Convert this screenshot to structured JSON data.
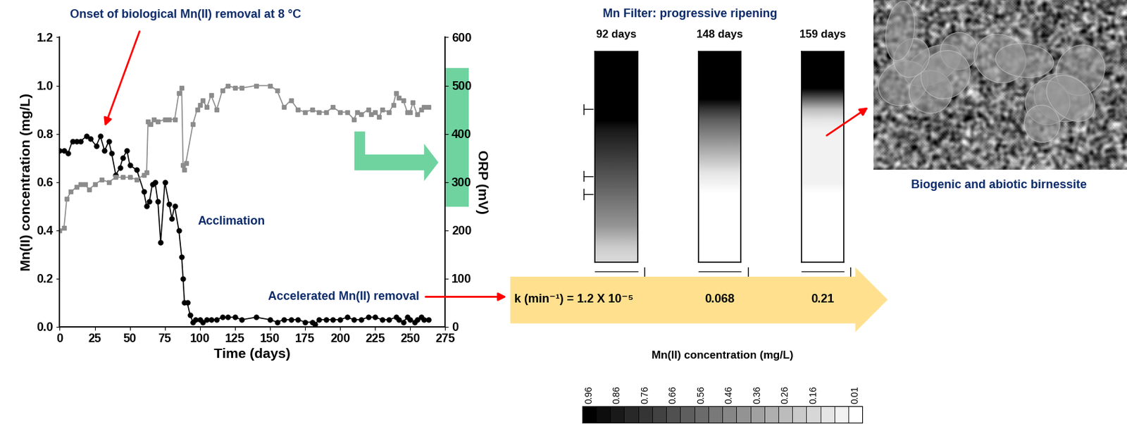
{
  "chart_data": {
    "type": "line",
    "x_label": "Time (days)",
    "y_label": "Mn(II) concentration (mg/L)",
    "y2_label": "ORP (mV)",
    "xlim": [
      0,
      275
    ],
    "xticks": [
      0,
      25,
      50,
      75,
      100,
      125,
      150,
      175,
      200,
      225,
      250,
      275
    ],
    "ylim": [
      0.0,
      1.2
    ],
    "yticks": [
      0.0,
      0.2,
      0.4,
      0.6,
      0.8,
      1.0,
      1.2
    ],
    "y2lim": [
      0,
      600
    ],
    "y2ticks": [
      0,
      100,
      200,
      300,
      400,
      500,
      600
    ],
    "series": [
      {
        "color": "#000000",
        "marker": "o",
        "x": [
          0,
          3,
          6,
          9,
          12,
          15,
          19,
          22,
          26,
          29,
          32,
          35,
          37,
          40,
          43,
          45,
          48,
          50,
          55,
          60,
          62,
          64,
          66,
          68,
          70,
          72,
          75,
          78,
          80,
          82,
          85,
          87,
          88,
          89,
          91,
          93,
          95,
          97,
          100,
          102,
          105,
          108,
          112,
          116,
          120,
          125,
          130,
          140,
          150,
          155,
          160,
          165,
          170,
          175,
          180,
          182,
          185,
          190,
          195,
          200,
          205,
          210,
          215,
          220,
          225,
          230,
          235,
          240,
          242,
          245,
          248,
          250,
          253,
          255,
          258,
          260,
          263
        ],
        "values": [
          0.73,
          0.73,
          0.72,
          0.77,
          0.77,
          0.77,
          0.79,
          0.78,
          0.75,
          0.79,
          0.73,
          0.77,
          0.72,
          0.63,
          0.66,
          0.7,
          0.73,
          0.67,
          0.65,
          0.56,
          0.5,
          0.52,
          0.59,
          0.6,
          0.52,
          0.35,
          0.6,
          0.51,
          0.45,
          0.5,
          0.4,
          0.29,
          0.2,
          0.1,
          0.1,
          0.05,
          0.02,
          0.03,
          0.03,
          0.02,
          0.03,
          0.03,
          0.03,
          0.04,
          0.04,
          0.04,
          0.03,
          0.04,
          0.03,
          0.02,
          0.03,
          0.03,
          0.03,
          0.02,
          0.02,
          0.01,
          0.03,
          0.03,
          0.03,
          0.03,
          0.04,
          0.03,
          0.03,
          0.04,
          0.04,
          0.03,
          0.03,
          0.04,
          0.03,
          0.02,
          0.04,
          0.03,
          0.02,
          0.03,
          0.04,
          0.03,
          0.03
        ]
      },
      {
        "color": "#8c8c8c",
        "marker": "s",
        "axis": "y2",
        "x": [
          0,
          3,
          5,
          8,
          12,
          15,
          18,
          21,
          25,
          30,
          35,
          40,
          45,
          50,
          55,
          60,
          62,
          63,
          65,
          67,
          70,
          75,
          78,
          82,
          85,
          87,
          88,
          89,
          90,
          95,
          98,
          100,
          102,
          105,
          108,
          112,
          116,
          120,
          125,
          130,
          140,
          150,
          155,
          160,
          165,
          170,
          175,
          180,
          185,
          190,
          195,
          200,
          205,
          210,
          212,
          215,
          220,
          222,
          225,
          228,
          230,
          235,
          238,
          240,
          242,
          245,
          248,
          250,
          252,
          255,
          258,
          260,
          263
        ],
        "values": [
          200,
          205,
          265,
          280,
          290,
          295,
          295,
          285,
          295,
          305,
          300,
          310,
          310,
          310,
          305,
          315,
          320,
          425,
          420,
          430,
          425,
          430,
          430,
          430,
          485,
          495,
          335,
          325,
          340,
          420,
          450,
          460,
          470,
          455,
          480,
          450,
          490,
          500,
          495,
          495,
          500,
          500,
          490,
          455,
          470,
          450,
          445,
          450,
          445,
          445,
          455,
          445,
          445,
          430,
          445,
          440,
          450,
          440,
          445,
          435,
          450,
          445,
          460,
          485,
          475,
          470,
          445,
          445,
          465,
          440,
          450,
          455,
          455
        ]
      }
    ],
    "annotations": [
      "Onset of biological Mn(II) removal at 8 °C",
      "Acclimation",
      "Accelerated Mn(II) removal"
    ]
  },
  "filter": {
    "title": "Mn Filter: progressive ripening",
    "columns": [
      {
        "label": "92 days",
        "profile": [
          0.96,
          0.96,
          0.96,
          0.96,
          0.96,
          0.96,
          0.96,
          0.86,
          0.81,
          0.76,
          0.71,
          0.66,
          0.61,
          0.56,
          0.51,
          0.46,
          0.41,
          0.31,
          0.21,
          0.16
        ]
      },
      {
        "label": "148 days",
        "profile": [
          0.96,
          0.96,
          0.96,
          0.96,
          0.96,
          0.76,
          0.61,
          0.51,
          0.41,
          0.31,
          0.21,
          0.11,
          0.06,
          0.01,
          0.01,
          0.01,
          0.01,
          0.01,
          0.01,
          0.01
        ]
      },
      {
        "label": "159 days",
        "profile": [
          0.96,
          0.96,
          0.96,
          0.96,
          0.61,
          0.26,
          0.11,
          0.06,
          0.06,
          0.06,
          0.06,
          0.06,
          0.06,
          0.01,
          0.01,
          0.01,
          0.01,
          0.01,
          0.01,
          0.01
        ]
      }
    ],
    "rate_label": "k (min⁻¹) =",
    "rates": [
      {
        "value": 1.2e-05,
        "label": "1.2 X 10⁻⁵"
      },
      0.068,
      0.21
    ],
    "colorbar": {
      "title": "Mn(II) concentration (mg/L)",
      "levels": [
        0.96,
        0.91,
        0.86,
        0.81,
        0.76,
        0.71,
        0.66,
        0.61,
        0.56,
        0.51,
        0.46,
        0.41,
        0.36,
        0.31,
        0.26,
        0.21,
        0.16,
        0.11,
        0.06,
        0.01
      ],
      "ticks": [
        0.96,
        0.86,
        0.76,
        0.66,
        0.56,
        0.46,
        0.36,
        0.26,
        0.16,
        0.01
      ]
    }
  },
  "image": {
    "caption": "Biogenic and abiotic birnessite"
  }
}
